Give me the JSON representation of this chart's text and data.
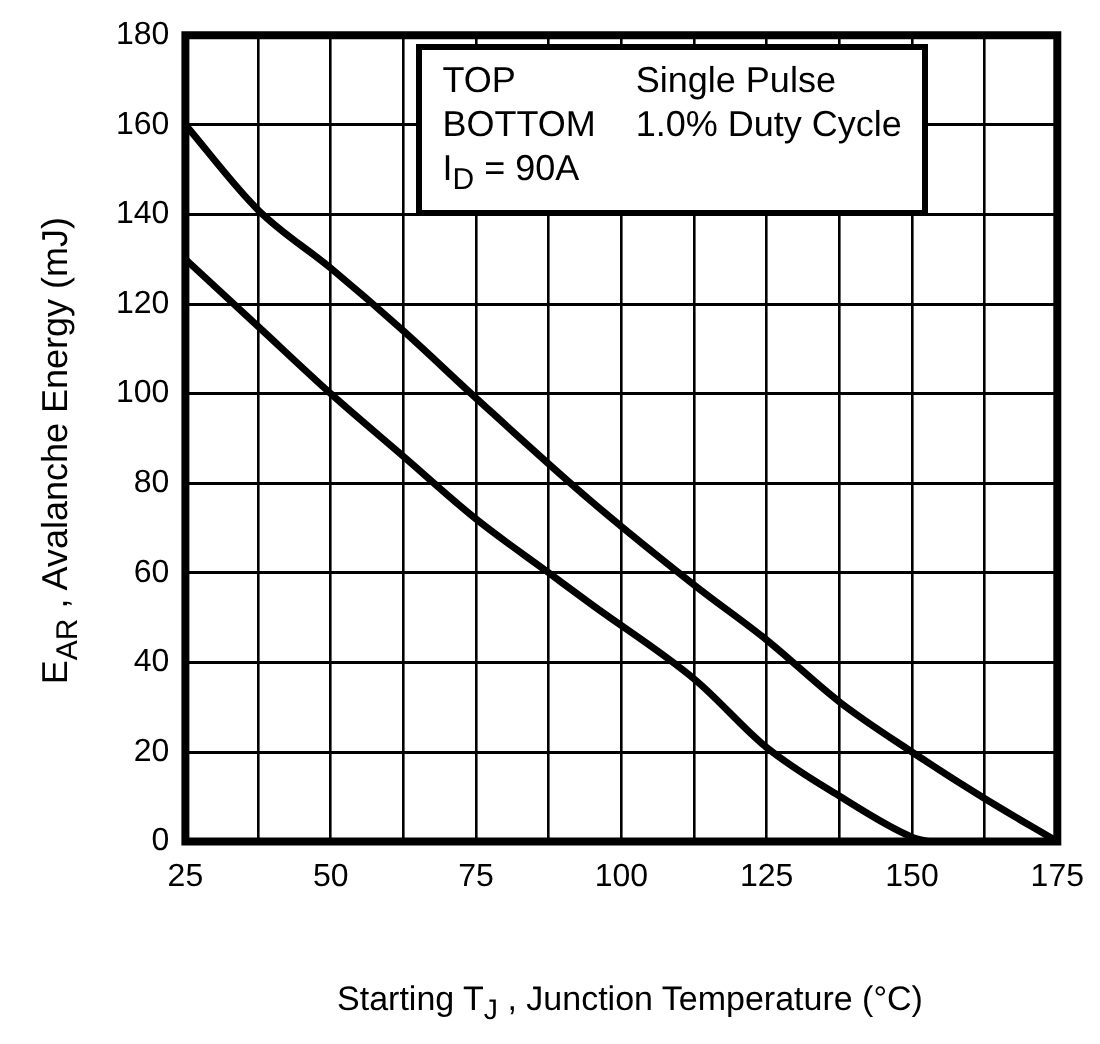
{
  "chart_data": {
    "type": "line",
    "xlabel": "Starting T$_{J}$ , Junction Temperature (°C)",
    "ylabel": "E$_{AR}$ , Avalanche Energy (mJ)",
    "annotations": [
      "TOP",
      "Single Pulse",
      "BOTTOM",
      "1.0% Duty Cycle",
      "I$_{D}$ = 90A"
    ],
    "series": [
      {
        "color": "#000000",
        "x": [
          25,
          37.5,
          50,
          62.5,
          75,
          94.8,
          112.8,
          125,
          137.7,
          150,
          162,
          175
        ],
        "values": [
          160,
          141,
          128,
          114,
          99,
          76,
          57,
          45,
          31,
          20,
          10,
          0
        ]
      },
      {
        "color": "#000000",
        "x": [
          25,
          37.5,
          50,
          62.5,
          75,
          87.5,
          94.8,
          112.8,
          125,
          137.7,
          150,
          153
        ],
        "values": [
          130,
          115,
          100,
          86,
          72,
          60,
          53,
          36,
          21,
          10,
          1,
          0
        ]
      }
    ],
    "xlim": [
      25,
      175
    ],
    "xticks": [
      25,
      {
        "value": 37.5,
        "label": null
      },
      50,
      {
        "value": 62.5,
        "label": null
      },
      75,
      {
        "value": 87.5,
        "label": null
      },
      100,
      {
        "value": 112.5,
        "label": null
      },
      125,
      {
        "value": 137.5,
        "label": null
      },
      150,
      {
        "value": 162.5,
        "label": null
      },
      175
    ],
    "ylim": [
      0,
      180
    ],
    "yticks": [
      0,
      20,
      40,
      60,
      80,
      100,
      120,
      140,
      160,
      180
    ],
    "grid": true,
    "legend": false,
    "marker": "none",
    "line_style": "solid"
  }
}
